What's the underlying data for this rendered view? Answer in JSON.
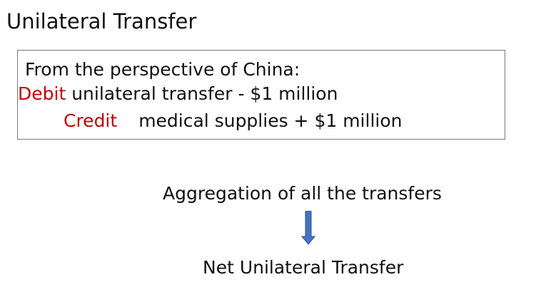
{
  "slide": {
    "title": "Unilateral Transfer"
  },
  "entry_box": {
    "perspective": "From the perspective of China:",
    "debit_keyword": "Debit",
    "debit_text": " unilateral transfer - $1 million",
    "credit_keyword": "Credit",
    "credit_text": "medical supplies + $1 million"
  },
  "flow": {
    "aggregation_label": "Aggregation of all the transfers",
    "result_label": "Net Unilateral Transfer",
    "arrow_icon": "down-arrow-icon"
  },
  "colors": {
    "accent_red": "#c00000",
    "arrow_fill": "#4472c4",
    "arrow_stroke": "#2f528f"
  }
}
